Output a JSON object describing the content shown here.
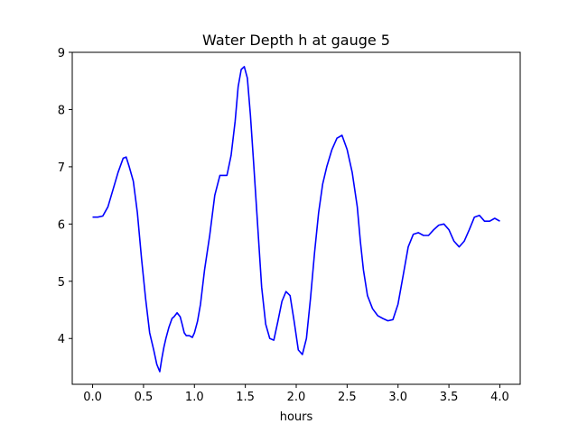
{
  "chart_data": {
    "type": "line",
    "title": "Water Depth h at gauge 5",
    "xlabel": "hours",
    "ylabel": "",
    "xlim": [
      -0.2,
      4.2
    ],
    "ylim": [
      3.2,
      9.0
    ],
    "xticks": [
      "0.0",
      "0.5",
      "1.0",
      "1.5",
      "2.0",
      "2.5",
      "3.0",
      "3.5",
      "4.0"
    ],
    "yticks": [
      "4",
      "5",
      "6",
      "7",
      "8",
      "9"
    ],
    "grid": false,
    "legend": "none",
    "series": [
      {
        "color": "#0000ff",
        "x": [
          0.0,
          0.05,
          0.1,
          0.15,
          0.2,
          0.25,
          0.3,
          0.33,
          0.36,
          0.4,
          0.44,
          0.48,
          0.52,
          0.56,
          0.6,
          0.63,
          0.66,
          0.68,
          0.7,
          0.72,
          0.75,
          0.78,
          0.8,
          0.83,
          0.86,
          0.88,
          0.9,
          0.92,
          0.95,
          0.98,
          1.0,
          1.03,
          1.06,
          1.1,
          1.15,
          1.2,
          1.25,
          1.28,
          1.32,
          1.36,
          1.4,
          1.43,
          1.46,
          1.49,
          1.52,
          1.55,
          1.58,
          1.62,
          1.66,
          1.7,
          1.74,
          1.78,
          1.82,
          1.86,
          1.9,
          1.94,
          1.98,
          2.02,
          2.06,
          2.1,
          2.14,
          2.18,
          2.22,
          2.26,
          2.3,
          2.35,
          2.4,
          2.45,
          2.5,
          2.55,
          2.6,
          2.63,
          2.66,
          2.7,
          2.75,
          2.8,
          2.85,
          2.9,
          2.95,
          3.0,
          3.05,
          3.1,
          3.15,
          3.2,
          3.25,
          3.3,
          3.35,
          3.4,
          3.45,
          3.5,
          3.55,
          3.6,
          3.65,
          3.7,
          3.75,
          3.8,
          3.85,
          3.9,
          3.95,
          4.0
        ],
        "values": [
          6.12,
          6.12,
          6.14,
          6.3,
          6.6,
          6.9,
          7.15,
          7.17,
          7.0,
          6.75,
          6.2,
          5.4,
          4.7,
          4.1,
          3.8,
          3.55,
          3.42,
          3.65,
          3.85,
          4.0,
          4.2,
          4.35,
          4.38,
          4.45,
          4.38,
          4.25,
          4.1,
          4.05,
          4.05,
          4.02,
          4.1,
          4.3,
          4.6,
          5.2,
          5.8,
          6.5,
          6.85,
          6.85,
          6.85,
          7.2,
          7.8,
          8.4,
          8.7,
          8.75,
          8.55,
          7.9,
          7.1,
          6.0,
          4.9,
          4.25,
          4.0,
          3.97,
          4.3,
          4.65,
          4.82,
          4.75,
          4.3,
          3.8,
          3.72,
          4.0,
          4.7,
          5.5,
          6.2,
          6.7,
          7.0,
          7.3,
          7.5,
          7.55,
          7.3,
          6.9,
          6.3,
          5.7,
          5.2,
          4.75,
          4.52,
          4.4,
          4.35,
          4.31,
          4.33,
          4.6,
          5.1,
          5.6,
          5.82,
          5.85,
          5.8,
          5.8,
          5.9,
          5.98,
          6.0,
          5.9,
          5.7,
          5.6,
          5.7,
          5.9,
          6.12,
          6.15,
          6.05,
          6.05,
          6.1,
          6.05
        ]
      }
    ]
  }
}
